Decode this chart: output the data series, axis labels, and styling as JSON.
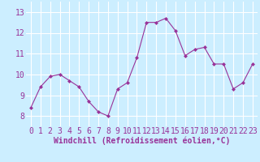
{
  "x": [
    0,
    1,
    2,
    3,
    4,
    5,
    6,
    7,
    8,
    9,
    10,
    11,
    12,
    13,
    14,
    15,
    16,
    17,
    18,
    19,
    20,
    21,
    22,
    23
  ],
  "y": [
    8.4,
    9.4,
    9.9,
    10.0,
    9.7,
    9.4,
    8.7,
    8.2,
    8.0,
    9.3,
    9.6,
    10.8,
    12.5,
    12.5,
    12.7,
    12.1,
    10.9,
    11.2,
    11.3,
    10.5,
    10.5,
    9.3,
    9.6,
    10.5
  ],
  "line_color": "#993399",
  "marker": "D",
  "marker_size": 2,
  "bg_color": "#cceeff",
  "grid_color": "#ffffff",
  "xlabel": "Windchill (Refroidissement éolien,°C)",
  "xlabel_color": "#993399",
  "tick_color": "#993399",
  "ylim": [
    7.5,
    13.5
  ],
  "xlim": [
    -0.5,
    23.5
  ],
  "yticks": [
    8,
    9,
    10,
    11,
    12,
    13
  ],
  "xticks": [
    0,
    1,
    2,
    3,
    4,
    5,
    6,
    7,
    8,
    9,
    10,
    11,
    12,
    13,
    14,
    15,
    16,
    17,
    18,
    19,
    20,
    21,
    22,
    23
  ],
  "tick_fontsize": 7,
  "xlabel_fontsize": 7
}
